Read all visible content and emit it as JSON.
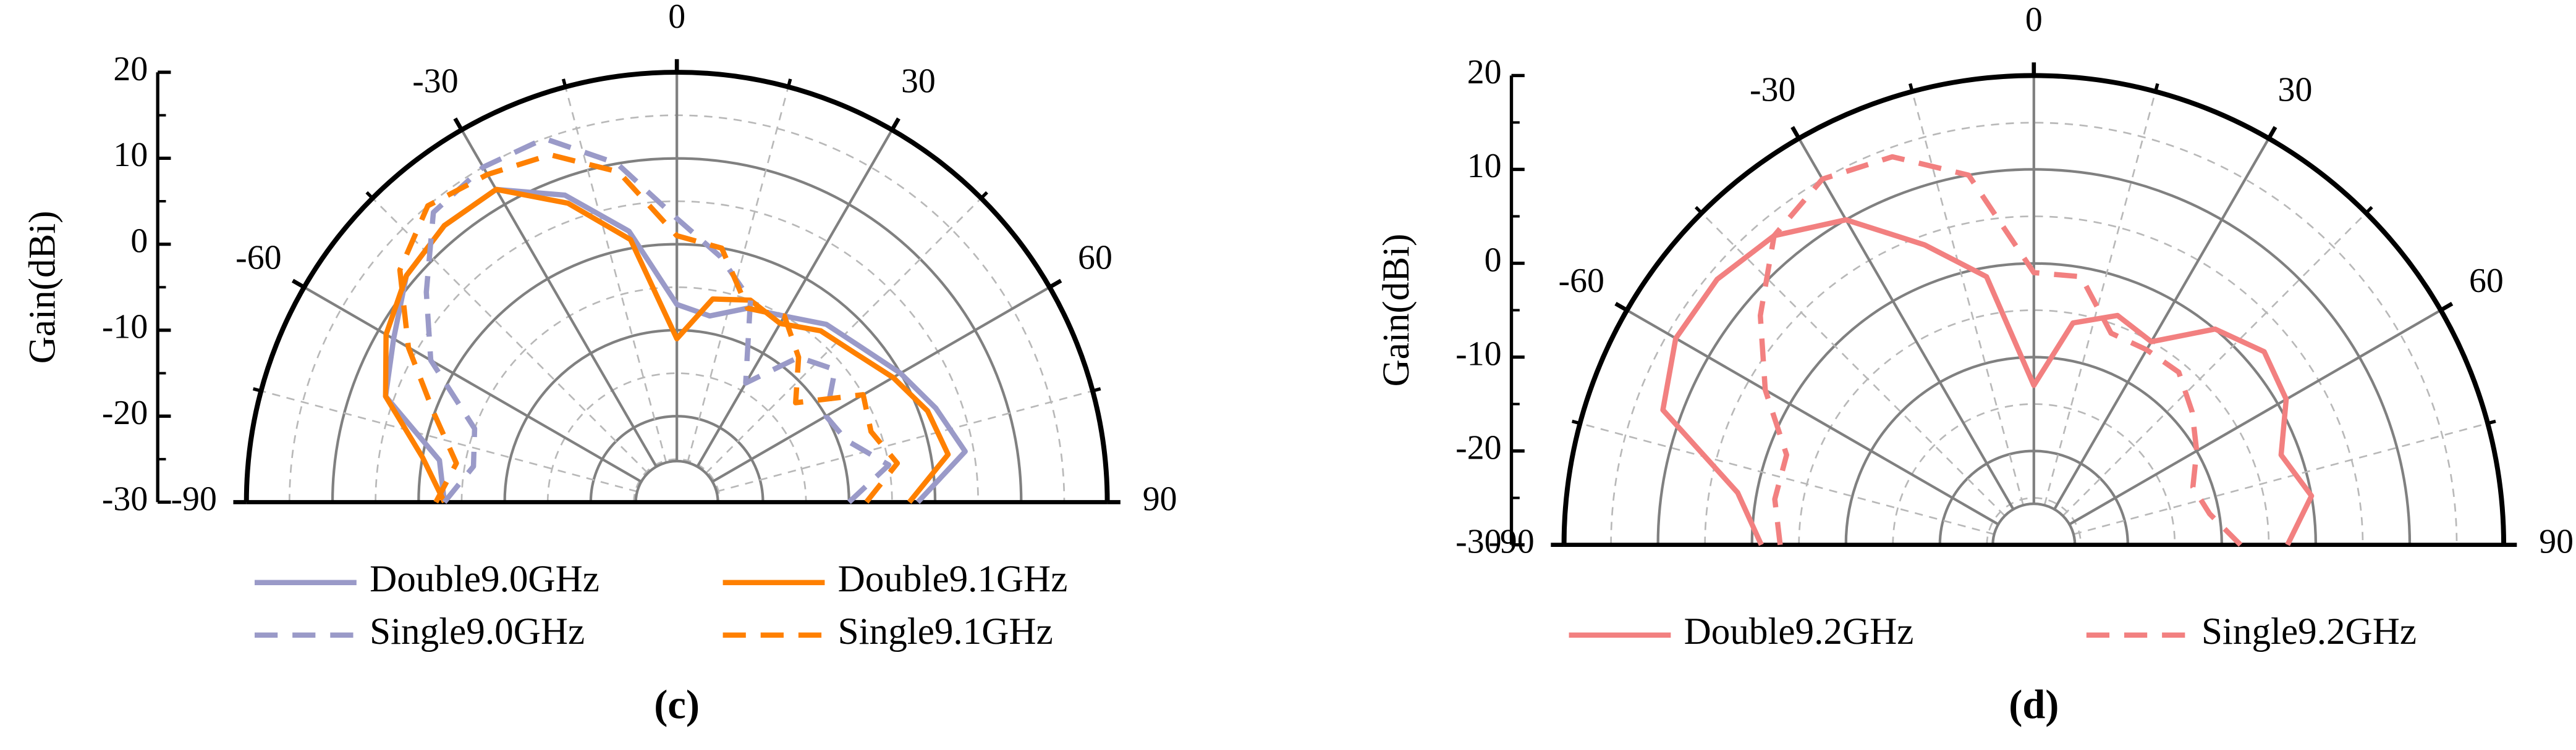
{
  "chart_data": [
    {
      "type": "polar",
      "caption": "(c)",
      "ylabel": "Gain(dBi)",
      "x": [
        -90,
        -80,
        -70,
        -60,
        -50,
        -40,
        -30,
        -20,
        -10,
        0,
        10,
        20,
        30,
        40,
        50,
        60,
        70,
        80,
        90
      ],
      "rlim": [
        -30,
        20
      ],
      "rticks": [
        -30,
        -20,
        -10,
        0,
        10,
        20
      ],
      "thetaticks": [
        -90,
        -60,
        -30,
        0,
        30,
        60,
        90
      ],
      "series": [
        {
          "name": "Double9.0GHz",
          "color": "#9a9ac8",
          "dash": false,
          "values": [
            -3,
            -2,
            6,
            8,
            11,
            12,
            12,
            8,
            2,
            -7,
            -8,
            -6,
            -5,
            -3,
            -2,
            0,
            2,
            4,
            -2
          ]
        },
        {
          "name": "Double9.1GHz",
          "color": "#ff8000",
          "dash": false,
          "values": [
            -3,
            0,
            6,
            9,
            11,
            12,
            12,
            7,
            1,
            -11,
            -6,
            -5,
            -6,
            -4,
            -3,
            -1,
            1,
            2,
            -3
          ]
        },
        {
          "name": "Single9.0GHz",
          "color": "#9a9ac8",
          "dash": true,
          "values": [
            -3,
            -6,
            -5,
            3,
            8,
            14,
            15,
            15,
            10,
            3,
            -1,
            -5,
            -14,
            -8,
            -6,
            -10,
            -9,
            -5,
            -10
          ]
        },
        {
          "name": "Single9.1GHz",
          "color": "#ff8000",
          "dash": true,
          "values": [
            -2,
            -4,
            0,
            6,
            12,
            15,
            14,
            13,
            9,
            1,
            0,
            -6,
            -5,
            -8,
            -12,
            -5,
            -6,
            -4,
            -8
          ]
        }
      ]
    },
    {
      "type": "polar",
      "caption": "(d)",
      "ylabel": "Gain(dBi)",
      "x": [
        -90,
        -80,
        -70,
        -60,
        -50,
        -40,
        -30,
        -20,
        -10,
        0,
        10,
        20,
        30,
        40,
        50,
        60,
        70,
        80,
        90
      ],
      "rlim": [
        -30,
        20
      ],
      "rticks": [
        -30,
        -20,
        -10,
        0,
        10,
        20
      ],
      "thetaticks": [
        -90,
        -60,
        -30,
        0,
        30,
        60,
        90
      ],
      "series": [
        {
          "name": "Double9.2GHz",
          "color": "#f28080",
          "dash": false,
          "values": [
            -1,
            2,
            12,
            14,
            14,
            13,
            10,
            4,
            -1,
            -13,
            -6,
            -4,
            -5,
            0,
            2,
            1,
            -2,
            0,
            -3
          ]
        },
        {
          "name": "Single9.2GHz",
          "color": "#f28080",
          "dash": true,
          "values": [
            -3,
            -2,
            -2,
            3,
            8,
            13,
            15,
            14,
            10,
            -1,
            -1,
            -6,
            -6,
            -6,
            -8,
            -10,
            -12,
            -11,
            -8
          ]
        }
      ]
    }
  ]
}
